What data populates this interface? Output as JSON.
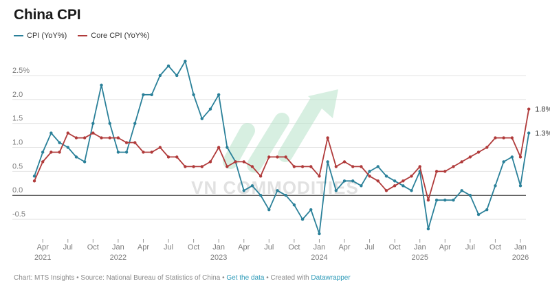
{
  "title": "China CPI",
  "legend": [
    {
      "label": "CPI (YoY%)",
      "color": "#2a8099"
    },
    {
      "label": "Core CPI (YoY%)",
      "color": "#b03a3a"
    }
  ],
  "watermark": "VN COMMODITIES",
  "footer": {
    "prefix": "Chart: MTS Insights • Source: National Bureau of Statistics of China • ",
    "get_data": "Get the data",
    "middle": " • Created with ",
    "created_with": "Datawrapper"
  },
  "chart_data": {
    "type": "line",
    "title": "China CPI",
    "x_start": "2021-03",
    "x_end": "2026-01",
    "ylim": [
      -0.9,
      2.9
    ],
    "y_ticks": [
      {
        "v": 2.5,
        "label": "2.5%"
      },
      {
        "v": 2.0,
        "label": "2.0"
      },
      {
        "v": 1.5,
        "label": "1.5"
      },
      {
        "v": 1.0,
        "label": "1.0"
      },
      {
        "v": 0.5,
        "label": "0.5"
      },
      {
        "v": 0.0,
        "label": "0.0"
      },
      {
        "v": -0.5,
        "label": "-0.5"
      }
    ],
    "x_ticks": [
      {
        "date": "2021-04",
        "label": "Apr",
        "year": "2021"
      },
      {
        "date": "2021-07",
        "label": "Jul"
      },
      {
        "date": "2021-10",
        "label": "Oct"
      },
      {
        "date": "2022-01",
        "label": "Jan",
        "year": "2022"
      },
      {
        "date": "2022-04",
        "label": "Apr"
      },
      {
        "date": "2022-07",
        "label": "Jul"
      },
      {
        "date": "2022-10",
        "label": "Oct"
      },
      {
        "date": "2023-01",
        "label": "Jan",
        "year": "2023"
      },
      {
        "date": "2023-04",
        "label": "Apr"
      },
      {
        "date": "2023-07",
        "label": "Jul"
      },
      {
        "date": "2023-10",
        "label": "Oct"
      },
      {
        "date": "2024-01",
        "label": "Jan",
        "year": "2024"
      },
      {
        "date": "2024-04",
        "label": "Apr"
      },
      {
        "date": "2024-07",
        "label": "Jul"
      },
      {
        "date": "2024-10",
        "label": "Oct"
      },
      {
        "date": "2025-01",
        "label": "Jan",
        "year": "2025"
      },
      {
        "date": "2025-04",
        "label": "Apr"
      },
      {
        "date": "2025-07",
        "label": "Jul"
      },
      {
        "date": "2025-10",
        "label": "Oct"
      },
      {
        "date": "2026-01",
        "label": "Jan",
        "year": "2026"
      }
    ],
    "series": [
      {
        "name": "CPI (YoY%)",
        "color": "#2a8099",
        "end_label": "1.3%",
        "values": [
          0.4,
          0.9,
          1.3,
          1.1,
          1.0,
          0.8,
          0.7,
          1.5,
          2.3,
          1.5,
          0.9,
          0.9,
          1.5,
          2.1,
          2.1,
          2.5,
          2.7,
          2.5,
          2.8,
          2.1,
          1.6,
          1.8,
          2.1,
          1.0,
          0.7,
          0.1,
          0.2,
          0.0,
          -0.3,
          0.1,
          0.0,
          -0.2,
          -0.5,
          -0.3,
          -0.8,
          0.7,
          0.1,
          0.3,
          0.3,
          0.2,
          0.5,
          0.6,
          0.4,
          0.3,
          0.2,
          0.1,
          0.5,
          -0.7,
          -0.1,
          -0.1,
          -0.1,
          0.1,
          0.0,
          -0.4,
          -0.3,
          0.2,
          0.7,
          0.8,
          0.2,
          1.3
        ]
      },
      {
        "name": "Core CPI (YoY%)",
        "color": "#b03a3a",
        "end_label": "1.8%",
        "values": [
          0.3,
          0.7,
          0.9,
          0.9,
          1.3,
          1.2,
          1.2,
          1.3,
          1.2,
          1.2,
          1.2,
          1.1,
          1.1,
          0.9,
          0.9,
          1.0,
          0.8,
          0.8,
          0.6,
          0.6,
          0.6,
          0.7,
          1.0,
          0.6,
          0.7,
          0.7,
          0.6,
          0.4,
          0.8,
          0.8,
          0.8,
          0.6,
          0.6,
          0.6,
          0.4,
          1.2,
          0.6,
          0.7,
          0.6,
          0.6,
          0.4,
          0.3,
          0.1,
          0.2,
          0.3,
          0.4,
          0.6,
          -0.1,
          0.5,
          0.5,
          0.6,
          0.7,
          0.8,
          0.9,
          1.0,
          1.2,
          1.2,
          1.2,
          0.8,
          1.8
        ]
      }
    ],
    "grid": true,
    "legend_position": "top-left"
  }
}
